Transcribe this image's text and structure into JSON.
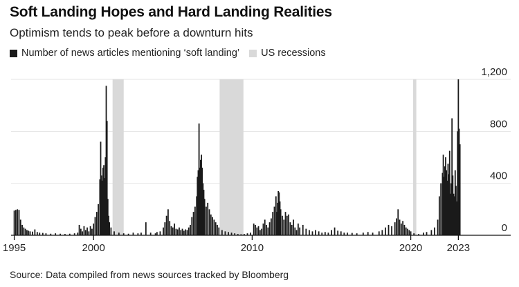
{
  "title": "Soft Landing Hopes and Hard Landing Realities",
  "subtitle": "Optimism tends to peak before a downturn hits",
  "source": "Source: Data compiled from news sources tracked by Bloomberg",
  "colors": {
    "bar": "#1a1a1a",
    "recession": "#d9d9d9",
    "grid": "#e3e3e3",
    "axis": "#111111"
  },
  "chart_data": {
    "type": "bar",
    "legend": [
      {
        "name": "Number of news articles mentioning ‘soft landing’",
        "color": "#1a1a1a"
      },
      {
        "name": "US recessions",
        "color": "#d9d9d9"
      }
    ],
    "x_ticks": [
      {
        "value": 1995,
        "label": "1995"
      },
      {
        "value": 2000,
        "label": "2000"
      },
      {
        "value": 2010,
        "label": "2010"
      },
      {
        "value": 2020,
        "label": "2020"
      },
      {
        "value": 2023,
        "label": "2023"
      }
    ],
    "y_ticks": [
      {
        "value": 0,
        "label": "0"
      },
      {
        "value": 400,
        "label": "400"
      },
      {
        "value": 800,
        "label": "800"
      },
      {
        "value": 1200,
        "label": "1,200"
      }
    ],
    "xlim": [
      1994.8,
      2026.3
    ],
    "ylim": [
      0,
      1200
    ],
    "recessions": [
      {
        "start": 2001.2,
        "end": 2001.9
      },
      {
        "start": 2007.95,
        "end": 2009.45
      },
      {
        "start": 2020.15,
        "end": 2020.35
      }
    ],
    "series": [
      {
        "name": "Number of news articles mentioning ‘soft landing’",
        "points": [
          [
            1995.0,
            190
          ],
          [
            1995.1,
            195
          ],
          [
            1995.2,
            200
          ],
          [
            1995.3,
            195
          ],
          [
            1995.4,
            120
          ],
          [
            1995.5,
            80
          ],
          [
            1995.6,
            60
          ],
          [
            1995.7,
            50
          ],
          [
            1995.8,
            40
          ],
          [
            1995.9,
            35
          ],
          [
            1996.0,
            30
          ],
          [
            1996.15,
            28
          ],
          [
            1996.3,
            45
          ],
          [
            1996.45,
            25
          ],
          [
            1996.6,
            20
          ],
          [
            1996.8,
            18
          ],
          [
            1997.0,
            15
          ],
          [
            1997.3,
            12
          ],
          [
            1997.6,
            15
          ],
          [
            1997.9,
            12
          ],
          [
            1998.2,
            10
          ],
          [
            1998.5,
            12
          ],
          [
            1998.8,
            15
          ],
          [
            1999.0,
            20
          ],
          [
            1999.1,
            80
          ],
          [
            1999.2,
            50
          ],
          [
            1999.3,
            30
          ],
          [
            1999.4,
            70
          ],
          [
            1999.5,
            40
          ],
          [
            1999.6,
            60
          ],
          [
            1999.7,
            30
          ],
          [
            1999.8,
            70
          ],
          [
            1999.9,
            50
          ],
          [
            2000.0,
            90
          ],
          [
            2000.1,
            140
          ],
          [
            2000.2,
            180
          ],
          [
            2000.3,
            240
          ],
          [
            2000.4,
            430
          ],
          [
            2000.45,
            720
          ],
          [
            2000.5,
            460
          ],
          [
            2000.55,
            420
          ],
          [
            2000.6,
            520
          ],
          [
            2000.65,
            540
          ],
          [
            2000.7,
            440
          ],
          [
            2000.75,
            600
          ],
          [
            2000.8,
            1150
          ],
          [
            2000.85,
            880
          ],
          [
            2000.9,
            280
          ],
          [
            2000.95,
            150
          ],
          [
            2001.0,
            100
          ],
          [
            2001.1,
            60
          ],
          [
            2001.3,
            30
          ],
          [
            2001.6,
            20
          ],
          [
            2001.9,
            15
          ],
          [
            2002.2,
            12
          ],
          [
            2002.5,
            20
          ],
          [
            2002.8,
            15
          ],
          [
            2003.0,
            20
          ],
          [
            2003.3,
            100
          ],
          [
            2003.6,
            20
          ],
          [
            2003.9,
            15
          ],
          [
            2004.0,
            25
          ],
          [
            2004.2,
            30
          ],
          [
            2004.4,
            60
          ],
          [
            2004.5,
            100
          ],
          [
            2004.6,
            150
          ],
          [
            2004.7,
            200
          ],
          [
            2004.8,
            110
          ],
          [
            2004.9,
            70
          ],
          [
            2005.0,
            60
          ],
          [
            2005.1,
            90
          ],
          [
            2005.2,
            50
          ],
          [
            2005.3,
            45
          ],
          [
            2005.4,
            60
          ],
          [
            2005.5,
            40
          ],
          [
            2005.6,
            50
          ],
          [
            2005.7,
            35
          ],
          [
            2005.8,
            45
          ],
          [
            2005.9,
            40
          ],
          [
            2006.0,
            60
          ],
          [
            2006.1,
            80
          ],
          [
            2006.2,
            140
          ],
          [
            2006.3,
            180
          ],
          [
            2006.4,
            220
          ],
          [
            2006.5,
            300
          ],
          [
            2006.55,
            450
          ],
          [
            2006.6,
            500
          ],
          [
            2006.65,
            860
          ],
          [
            2006.7,
            520
          ],
          [
            2006.75,
            580
          ],
          [
            2006.8,
            620
          ],
          [
            2006.85,
            520
          ],
          [
            2006.9,
            400
          ],
          [
            2006.95,
            350
          ],
          [
            2007.0,
            280
          ],
          [
            2007.1,
            220
          ],
          [
            2007.2,
            250
          ],
          [
            2007.3,
            200
          ],
          [
            2007.4,
            160
          ],
          [
            2007.5,
            140
          ],
          [
            2007.6,
            120
          ],
          [
            2007.7,
            100
          ],
          [
            2007.8,
            80
          ],
          [
            2007.9,
            60
          ],
          [
            2008.1,
            40
          ],
          [
            2008.3,
            30
          ],
          [
            2008.5,
            25
          ],
          [
            2008.7,
            20
          ],
          [
            2008.9,
            15
          ],
          [
            2009.1,
            10
          ],
          [
            2009.3,
            8
          ],
          [
            2009.5,
            10
          ],
          [
            2009.7,
            15
          ],
          [
            2009.9,
            20
          ],
          [
            2010.1,
            90
          ],
          [
            2010.2,
            80
          ],
          [
            2010.3,
            60
          ],
          [
            2010.4,
            70
          ],
          [
            2010.5,
            40
          ],
          [
            2010.6,
            50
          ],
          [
            2010.7,
            90
          ],
          [
            2010.8,
            120
          ],
          [
            2010.9,
            80
          ],
          [
            2011.0,
            60
          ],
          [
            2011.1,
            100
          ],
          [
            2011.2,
            130
          ],
          [
            2011.3,
            180
          ],
          [
            2011.4,
            220
          ],
          [
            2011.5,
            300
          ],
          [
            2011.55,
            180
          ],
          [
            2011.6,
            250
          ],
          [
            2011.65,
            340
          ],
          [
            2011.7,
            330
          ],
          [
            2011.75,
            260
          ],
          [
            2011.8,
            200
          ],
          [
            2011.9,
            150
          ],
          [
            2012.0,
            120
          ],
          [
            2012.1,
            180
          ],
          [
            2012.2,
            150
          ],
          [
            2012.3,
            160
          ],
          [
            2012.4,
            100
          ],
          [
            2012.5,
            80
          ],
          [
            2012.6,
            120
          ],
          [
            2012.7,
            60
          ],
          [
            2012.8,
            40
          ],
          [
            2012.9,
            90
          ],
          [
            2013.0,
            60
          ],
          [
            2013.2,
            80
          ],
          [
            2013.4,
            50
          ],
          [
            2013.6,
            40
          ],
          [
            2013.8,
            30
          ],
          [
            2014.0,
            40
          ],
          [
            2014.2,
            30
          ],
          [
            2014.4,
            20
          ],
          [
            2014.6,
            25
          ],
          [
            2014.8,
            20
          ],
          [
            2015.0,
            40
          ],
          [
            2015.2,
            60
          ],
          [
            2015.4,
            35
          ],
          [
            2015.6,
            30
          ],
          [
            2015.8,
            20
          ],
          [
            2016.0,
            20
          ],
          [
            2016.3,
            18
          ],
          [
            2016.6,
            15
          ],
          [
            2017.0,
            20
          ],
          [
            2017.3,
            25
          ],
          [
            2017.6,
            20
          ],
          [
            2018.0,
            30
          ],
          [
            2018.2,
            40
          ],
          [
            2018.4,
            60
          ],
          [
            2018.6,
            80
          ],
          [
            2018.8,
            70
          ],
          [
            2019.0,
            100
          ],
          [
            2019.1,
            130
          ],
          [
            2019.2,
            200
          ],
          [
            2019.3,
            120
          ],
          [
            2019.4,
            90
          ],
          [
            2019.5,
            110
          ],
          [
            2019.6,
            80
          ],
          [
            2019.7,
            60
          ],
          [
            2019.8,
            50
          ],
          [
            2019.9,
            40
          ],
          [
            2020.0,
            30
          ],
          [
            2020.2,
            15
          ],
          [
            2020.5,
            10
          ],
          [
            2020.8,
            20
          ],
          [
            2021.0,
            25
          ],
          [
            2021.3,
            40
          ],
          [
            2021.5,
            60
          ],
          [
            2021.7,
            120
          ],
          [
            2021.8,
            300
          ],
          [
            2021.9,
            400
          ],
          [
            2022.0,
            480
          ],
          [
            2022.05,
            620
          ],
          [
            2022.1,
            450
          ],
          [
            2022.15,
            530
          ],
          [
            2022.2,
            600
          ],
          [
            2022.25,
            500
          ],
          [
            2022.3,
            420
          ],
          [
            2022.35,
            550
          ],
          [
            2022.4,
            470
          ],
          [
            2022.45,
            650
          ],
          [
            2022.5,
            320
          ],
          [
            2022.55,
            400
          ],
          [
            2022.6,
            900
          ],
          [
            2022.65,
            460
          ],
          [
            2022.7,
            320
          ],
          [
            2022.75,
            300
          ],
          [
            2022.8,
            500
          ],
          [
            2022.85,
            380
          ],
          [
            2022.9,
            260
          ],
          [
            2022.95,
            800
          ],
          [
            2023.0,
            1200
          ],
          [
            2023.05,
            820
          ],
          [
            2023.1,
            700
          ]
        ]
      }
    ]
  }
}
